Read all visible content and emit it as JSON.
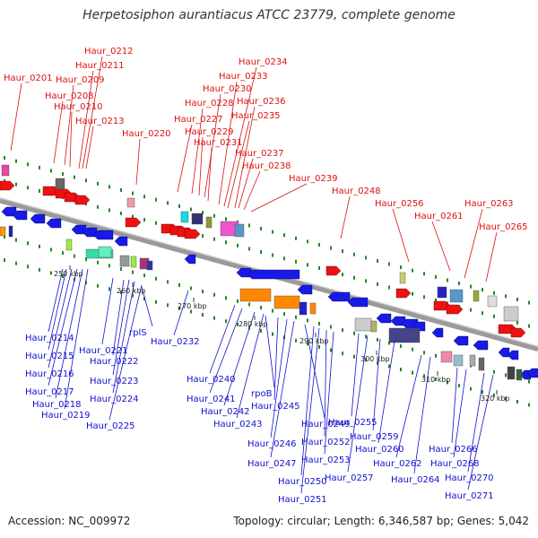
{
  "title": "Herpetosiphon aurantiacus ATCC 23779, complete genome",
  "footer": {
    "accession": "Accession: NC_009972",
    "topology": "Topology: circular; Length: 6,346,587 bp; Genes: 5,042"
  },
  "colors": {
    "forward_label": "#dd1111",
    "reverse_label": "#1111cc",
    "backbone": "#9a9a9a",
    "tick": "#1f8a1f"
  },
  "scale_labels": [
    "250 kbp",
    "260 kbp",
    "270 kbp",
    "280 kbp",
    "290 kbp",
    "300 kbp",
    "310 kbp",
    "320 kbp"
  ],
  "forward_genes": [
    "Haur_0201",
    "Haur_0208",
    "Haur_0209",
    "Haur_0210",
    "Haur_0211",
    "Haur_0212",
    "Haur_0213",
    "Haur_0220",
    "Haur_0227",
    "Haur_0228",
    "Haur_0229",
    "Haur_0230",
    "Haur_0231",
    "Haur_0233",
    "Haur_0234",
    "Haur_0235",
    "Haur_0236",
    "Haur_0237",
    "Haur_0238",
    "Haur_0239",
    "Haur_0248",
    "Haur_0256",
    "Haur_0261",
    "Haur_0263",
    "Haur_0265"
  ],
  "reverse_genes": [
    "Haur_0214",
    "Haur_0215",
    "Haur_0216",
    "Haur_0217",
    "Haur_0218",
    "Haur_0219",
    "Haur_0221",
    "Haur_0222",
    "Haur_0223",
    "Haur_0224",
    "Haur_0225",
    "rplS",
    "Haur_0232",
    "Haur_0240",
    "Haur_0241",
    "Haur_0242",
    "Haur_0243",
    "rpoB",
    "Haur_0245",
    "Haur_0246",
    "Haur_0247",
    "Haur_0249",
    "Haur_0250",
    "Haur_0251",
    "Haur_0252",
    "Haur_0253",
    "Haur_0255",
    "Haur_0257",
    "Haur_0259",
    "Haur_0260",
    "Haur_0262",
    "Haur_0264",
    "Haur_0266",
    "Haur_0268",
    "Haur_0270",
    "Haur_0271"
  ]
}
